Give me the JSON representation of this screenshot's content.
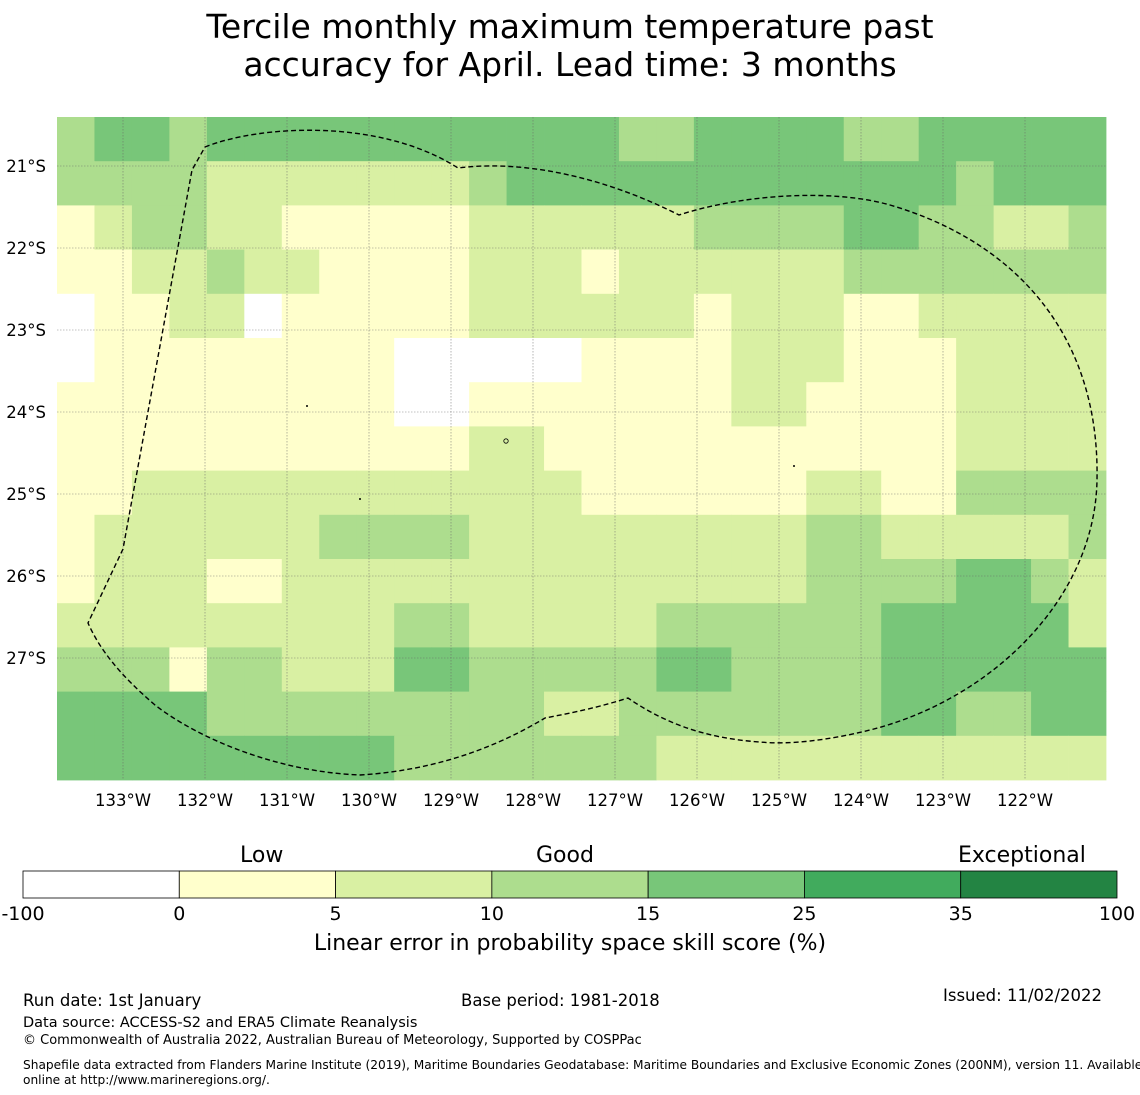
{
  "title": {
    "line1": "Tercile monthly maximum temperature past",
    "line2": "accuracy for April. Lead time: 3 months"
  },
  "map": {
    "lon_ticks": [
      "133°W",
      "132°W",
      "131°W",
      "130°W",
      "129°W",
      "128°W",
      "127°W",
      "126°W",
      "125°W",
      "124°W",
      "123°W",
      "122°W"
    ],
    "lat_ticks": [
      "21°S",
      "22°S",
      "23°S",
      "24°S",
      "25°S",
      "26°S",
      "27°S"
    ],
    "grid": [
      [
        2,
        3,
        3,
        2,
        3,
        3,
        3,
        3,
        3,
        3,
        3,
        3,
        3,
        3,
        3,
        2,
        2,
        3,
        3,
        3,
        3,
        2,
        2,
        3,
        3,
        3,
        3,
        3
      ],
      [
        2,
        2,
        2,
        2,
        1,
        1,
        1,
        1,
        1,
        1,
        1,
        2,
        3,
        3,
        3,
        3,
        3,
        3,
        3,
        3,
        3,
        3,
        3,
        3,
        2,
        3,
        3,
        3
      ],
      [
        0,
        1,
        2,
        2,
        1,
        1,
        0,
        0,
        0,
        0,
        0,
        1,
        1,
        1,
        1,
        1,
        1,
        2,
        2,
        2,
        2,
        3,
        3,
        2,
        2,
        1,
        1,
        2
      ],
      [
        0,
        0,
        1,
        1,
        2,
        1,
        1,
        0,
        0,
        0,
        0,
        1,
        1,
        1,
        0,
        1,
        1,
        1,
        1,
        1,
        1,
        2,
        2,
        2,
        2,
        2,
        2,
        2
      ],
      [
        -1,
        0,
        0,
        1,
        1,
        -1,
        0,
        0,
        0,
        0,
        0,
        1,
        1,
        1,
        1,
        1,
        1,
        0,
        1,
        1,
        1,
        0,
        0,
        1,
        1,
        1,
        1,
        1
      ],
      [
        -1,
        0,
        0,
        0,
        0,
        0,
        0,
        0,
        0,
        -1,
        -1,
        -1,
        -1,
        -1,
        0,
        0,
        0,
        0,
        1,
        1,
        1,
        0,
        0,
        0,
        1,
        1,
        1,
        1
      ],
      [
        0,
        0,
        0,
        0,
        0,
        0,
        0,
        0,
        0,
        -1,
        -1,
        0,
        0,
        0,
        0,
        0,
        0,
        0,
        1,
        1,
        0,
        0,
        0,
        0,
        1,
        1,
        1,
        1
      ],
      [
        0,
        0,
        0,
        0,
        0,
        0,
        0,
        0,
        0,
        0,
        0,
        1,
        1,
        0,
        0,
        0,
        0,
        0,
        0,
        0,
        0,
        0,
        0,
        0,
        1,
        1,
        1,
        1
      ],
      [
        0,
        0,
        1,
        1,
        1,
        1,
        1,
        1,
        1,
        1,
        1,
        1,
        1,
        1,
        0,
        0,
        0,
        0,
        0,
        0,
        1,
        1,
        0,
        0,
        2,
        2,
        2,
        2
      ],
      [
        0,
        1,
        1,
        1,
        1,
        1,
        1,
        2,
        2,
        2,
        2,
        1,
        1,
        1,
        1,
        1,
        1,
        1,
        1,
        1,
        2,
        2,
        1,
        1,
        1,
        1,
        1,
        2
      ],
      [
        0,
        1,
        1,
        1,
        0,
        0,
        1,
        1,
        1,
        1,
        1,
        1,
        1,
        1,
        1,
        1,
        1,
        1,
        1,
        1,
        2,
        2,
        2,
        2,
        3,
        3,
        2,
        1
      ],
      [
        1,
        1,
        1,
        1,
        1,
        1,
        1,
        1,
        1,
        2,
        2,
        1,
        1,
        1,
        1,
        1,
        2,
        2,
        2,
        2,
        2,
        2,
        3,
        3,
        3,
        3,
        3,
        1
      ],
      [
        2,
        2,
        2,
        0,
        2,
        2,
        1,
        1,
        1,
        3,
        3,
        2,
        2,
        2,
        2,
        2,
        3,
        3,
        2,
        2,
        2,
        2,
        3,
        3,
        3,
        3,
        3,
        3
      ],
      [
        3,
        3,
        3,
        3,
        2,
        2,
        2,
        2,
        2,
        2,
        2,
        2,
        2,
        1,
        1,
        2,
        2,
        2,
        2,
        2,
        2,
        2,
        3,
        3,
        2,
        2,
        3,
        3
      ],
      [
        3,
        3,
        3,
        3,
        3,
        3,
        3,
        3,
        3,
        2,
        2,
        2,
        2,
        2,
        2,
        2,
        1,
        1,
        1,
        1,
        1,
        1,
        1,
        1,
        1,
        1,
        1,
        1
      ]
    ]
  },
  "colorbar": {
    "labels": [
      "-100",
      "0",
      "5",
      "10",
      "15",
      "25",
      "35",
      "100"
    ],
    "colors": [
      "#ffffff",
      "#ffffcc",
      "#d9f0a3",
      "#addd8e",
      "#78c679",
      "#41ab5d",
      "#238443"
    ],
    "categories": [
      "Low",
      "Good",
      "Exceptional"
    ],
    "xlabel": "Linear error in probability space skill score (%)"
  },
  "footer": {
    "run_date": "Run date: 1st January",
    "base_period": "Base period: 1981-2018",
    "issued": "Issued: 11/02/2022",
    "data_source": "Data source: ACCESS-S2 and ERA5 Climate Reanalysis",
    "copyright": "© Commonwealth of Australia 2022, Australian Bureau of Meteorology, Supported by COSPPac",
    "shapefile_line1": "Shapefile data extracted from Flanders Marine Institute (2019), Maritime Boundaries Geodatabase: Maritime Boundaries and Exclusive Economic Zones (200NM), version 11. Available",
    "shapefile_line2": "online at http://www.marineregions.org/."
  }
}
